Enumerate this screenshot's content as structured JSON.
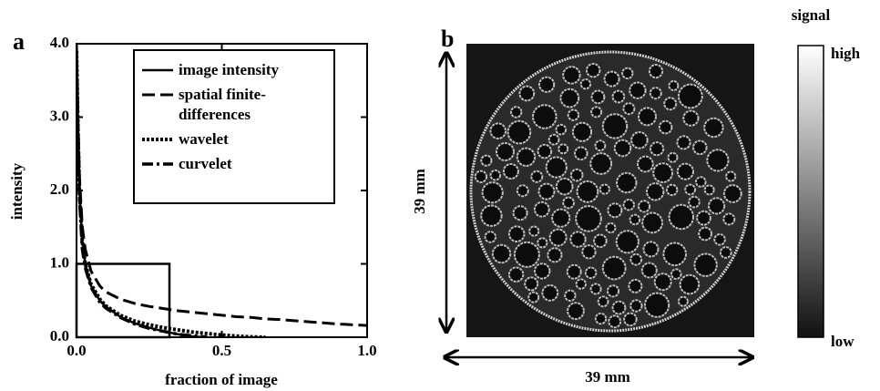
{
  "chart_data": {
    "type": "line",
    "panel_label": "a",
    "xlabel": "fraction of image",
    "ylabel": "intensity",
    "x": [
      0,
      0.005,
      0.01,
      0.02,
      0.03,
      0.05,
      0.08,
      0.1,
      0.15,
      0.2,
      0.25,
      0.3,
      0.35,
      0.4,
      0.45,
      0.5,
      0.55,
      0.6,
      0.65,
      0.7,
      0.8,
      0.9,
      1.0
    ],
    "series": [
      {
        "name": "image intensity",
        "color": "#000000",
        "style": "solid",
        "values": [
          4.0,
          2.9,
          2.0,
          1.3,
          1.0,
          0.7,
          0.5,
          0.42,
          0.28,
          0.19,
          0.13,
          0.08,
          0.04,
          0.01,
          0.0,
          null,
          null,
          null,
          null,
          null,
          null,
          null,
          null
        ]
      },
      {
        "name": "spatial finite-differences",
        "color": "#000000",
        "style": "dashed",
        "values": [
          4.0,
          3.0,
          2.2,
          1.5,
          1.2,
          0.9,
          0.7,
          0.62,
          0.52,
          0.46,
          0.42,
          0.39,
          0.36,
          0.34,
          0.32,
          0.3,
          0.28,
          0.27,
          0.25,
          0.24,
          0.21,
          0.18,
          0.16
        ]
      },
      {
        "name": "wavelet",
        "color": "#000000",
        "style": "dotted",
        "values": [
          3.9,
          2.8,
          2.0,
          1.3,
          1.0,
          0.72,
          0.52,
          0.43,
          0.3,
          0.22,
          0.17,
          0.13,
          0.1,
          0.07,
          0.05,
          0.03,
          0.015,
          0.005,
          0.0,
          null,
          null,
          null,
          null
        ]
      },
      {
        "name": "curvelet",
        "color": "#000000",
        "style": "dashdot",
        "values": [
          3.8,
          2.7,
          1.9,
          1.2,
          0.95,
          0.68,
          0.48,
          0.4,
          0.27,
          0.18,
          0.12,
          0.08,
          0.04,
          0.02,
          0.0,
          null,
          null,
          null,
          null,
          null,
          null,
          null,
          null
        ]
      }
    ],
    "xlim": [
      0,
      1.0
    ],
    "ylim": [
      0,
      4.0
    ],
    "xticks": [
      {
        "value": 0,
        "label": "0.0"
      },
      {
        "value": 0.5,
        "label": "0.5"
      },
      {
        "value": 1.0,
        "label": "1.0"
      }
    ],
    "yticks": [
      {
        "value": 0,
        "label": "0.0"
      },
      {
        "value": 1.0,
        "label": "1.0"
      },
      {
        "value": 2.0,
        "label": "2.0"
      },
      {
        "value": 3.0,
        "label": "3.0"
      },
      {
        "value": 4.0,
        "label": "4.0"
      }
    ],
    "grid": false,
    "legend": "upper right"
  },
  "panel_b": {
    "panel_label": "b",
    "height_label": "39 mm",
    "width_label": "39 mm",
    "colorbar": {
      "title": "signal",
      "high": "high",
      "low": "low"
    }
  }
}
